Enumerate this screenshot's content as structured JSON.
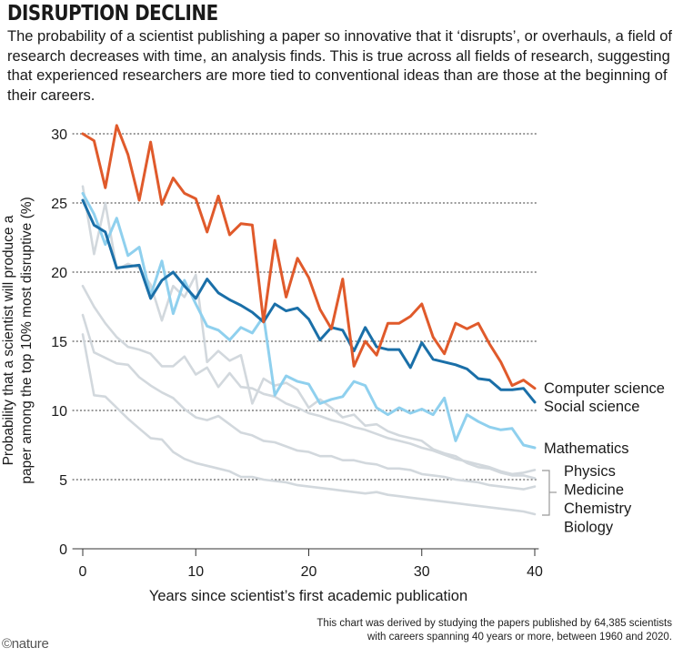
{
  "title": "DISRUPTION DECLINE",
  "subtitle": "The probability of a scientist publishing a paper so innovative that it ‘disrupts’, or overhauls, a field of research decreases with time, an analysis finds. This is true across all fields of research, suggesting that experienced researchers are more tied to conventional ideas than are those at the beginning of their careers.",
  "footnote_line1": "This chart was derived by studying the papers published by 64,385 scientists",
  "footnote_line2": "with careers spanning 40 years or more, between 1960 and 2020.",
  "logo": "©nature",
  "chart_data": {
    "type": "line",
    "xlabel": "Years since scientist’s first academic publication",
    "ylabel_line1": "Probability that a scientist will produce a",
    "ylabel_line2": "paper among the top 10% most disruptive (%)",
    "xlim": [
      0,
      40
    ],
    "ylim": [
      0,
      30
    ],
    "xticks": [
      0,
      10,
      20,
      30,
      40
    ],
    "yticks": [
      0,
      5,
      10,
      15,
      20,
      25,
      30
    ],
    "grid": "horizontal dotted",
    "x": [
      0,
      1,
      2,
      3,
      4,
      5,
      6,
      7,
      8,
      9,
      10,
      11,
      12,
      13,
      14,
      15,
      16,
      17,
      18,
      19,
      20,
      21,
      22,
      23,
      24,
      25,
      26,
      27,
      28,
      29,
      30,
      31,
      32,
      33,
      34,
      35,
      36,
      37,
      38,
      39,
      40
    ],
    "colors": {
      "computer_science": "#e05a2b",
      "social_science": "#1a6fa8",
      "mathematics": "#8fd0ee",
      "grey_fields": "#d2d8dd"
    },
    "bracket_labels": [
      "Physics",
      "Medicine",
      "Chemistry",
      "Biology"
    ],
    "series": [
      {
        "name": "Physics",
        "color": "#d2d8dd",
        "values": [
          26.2,
          21.3,
          25,
          20.2,
          20.6,
          20.3,
          19.1,
          16.5,
          19,
          18.2,
          19.8,
          13.5,
          14.3,
          13.6,
          14,
          10.5,
          12.3,
          11.8,
          12,
          11.5,
          10.2,
          10.8,
          10.2,
          9.5,
          9.7,
          8.9,
          9,
          8.5,
          8.2,
          8,
          7.8,
          7.2,
          6.9,
          6.7,
          6.2,
          5.9,
          5.8,
          5.5,
          5.3,
          5.3,
          5.1
        ]
      },
      {
        "name": "Medicine",
        "color": "#d2d8dd",
        "values": [
          19,
          17.5,
          16.3,
          15.3,
          14.6,
          14.4,
          14.1,
          13.2,
          13.2,
          13.9,
          12.6,
          13.1,
          11.7,
          12.7,
          11.7,
          11.6,
          11.2,
          11,
          10.5,
          10.2,
          9.8,
          9.6,
          9.3,
          9.1,
          8.8,
          8.6,
          8.3,
          8,
          7.8,
          7.6,
          7.3,
          7.1,
          6.8,
          6.5,
          6.3,
          6.1,
          5.9,
          5.6,
          5.4,
          5.5,
          5.7
        ]
      },
      {
        "name": "Chemistry",
        "color": "#d2d8dd",
        "values": [
          16.9,
          14.2,
          13.8,
          13.4,
          13.3,
          12.4,
          11.8,
          11.3,
          10.9,
          10.1,
          9.5,
          9.3,
          9.6,
          9,
          8.4,
          8.2,
          7.8,
          7.7,
          7.4,
          7.1,
          7,
          6.7,
          6.7,
          6.4,
          6.4,
          6.2,
          6.1,
          5.8,
          5.8,
          5.7,
          5.4,
          5.3,
          5.2,
          5,
          4.9,
          4.8,
          4.6,
          4.5,
          4.4,
          4.3,
          4.5
        ]
      },
      {
        "name": "Biology",
        "color": "#d2d8dd",
        "values": [
          15.5,
          11.1,
          11,
          10.2,
          9.4,
          8.7,
          8,
          7.9,
          7,
          6.5,
          6.2,
          6,
          5.8,
          5.6,
          5.2,
          5.2,
          5,
          4.9,
          4.8,
          4.6,
          4.5,
          4.4,
          4.3,
          4.2,
          4.1,
          4,
          4.1,
          3.9,
          3.8,
          3.7,
          3.6,
          3.5,
          3.4,
          3.3,
          3.2,
          3.1,
          3,
          2.9,
          2.8,
          2.7,
          2.5
        ]
      },
      {
        "name": "Mathematics",
        "color": "#8fd0ee",
        "values": [
          25.7,
          24.2,
          22,
          23.9,
          21.2,
          21.8,
          18.3,
          20.8,
          17,
          19.4,
          17.7,
          16.1,
          15.8,
          15.1,
          16,
          15.6,
          16.8,
          11.1,
          12.5,
          12.1,
          11.9,
          10.5,
          10.8,
          11,
          12.1,
          11.8,
          10.2,
          9.7,
          10.2,
          9.8,
          10.1,
          9.7,
          10.9,
          7.8,
          9.7,
          9.2,
          8.8,
          8.6,
          8.7,
          7.5,
          7.3
        ]
      },
      {
        "name": "Social science",
        "color": "#1a6fa8",
        "values": [
          25.2,
          23.4,
          22.9,
          20.3,
          20.4,
          20.5,
          18.1,
          19.4,
          20,
          19,
          18.1,
          19.5,
          18.5,
          18,
          17.6,
          17.1,
          16.4,
          17.7,
          17.2,
          17.4,
          16.6,
          15.1,
          16,
          15.8,
          14.3,
          16,
          14.6,
          14.4,
          14.4,
          13.1,
          14.9,
          13.7,
          13.5,
          13.3,
          13,
          12.3,
          12.2,
          11.5,
          11.5,
          11.6,
          10.6
        ]
      },
      {
        "name": "Computer science",
        "color": "#e05a2b",
        "values": [
          30,
          29.5,
          26.1,
          30.6,
          28.5,
          25.2,
          29.4,
          24.9,
          26.8,
          25.7,
          25.3,
          22.9,
          25.5,
          22.7,
          23.5,
          23.4,
          16.4,
          22.3,
          18.2,
          21,
          19.6,
          17.3,
          15.9,
          19.5,
          13.2,
          15,
          14,
          16.3,
          16.3,
          16.8,
          17.7,
          15.3,
          14.1,
          16.3,
          15.9,
          16.3,
          14.8,
          13.5,
          11.8,
          12.2,
          11.6
        ]
      }
    ]
  }
}
